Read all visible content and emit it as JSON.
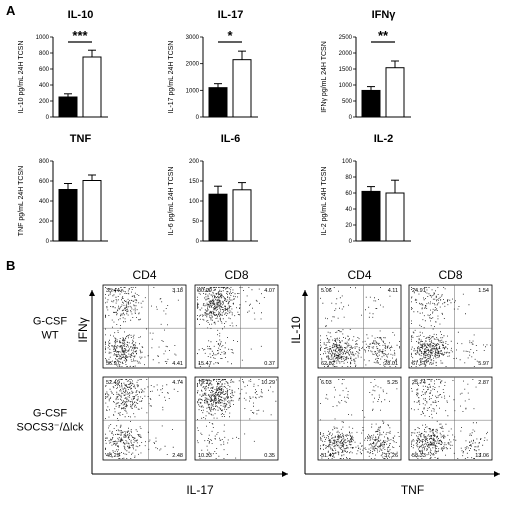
{
  "panels": {
    "a_label": "A",
    "b_label": "B"
  },
  "chart_data": [
    {
      "type": "bar",
      "title": "IL-10",
      "ylabel": "IL-10 pg/mL 24H TCSN",
      "ylim": [
        0,
        1000
      ],
      "yticks": [
        "0",
        "200",
        "400",
        "600",
        "800",
        "1000"
      ],
      "significance": "***",
      "values": [
        250,
        750
      ],
      "errors": [
        40,
        85
      ],
      "fills": [
        "#000000",
        "#ffffff"
      ]
    },
    {
      "type": "bar",
      "title": "IL-17",
      "ylabel": "IL-17 pg/mL 24H TCSN",
      "ylim": [
        0,
        3000
      ],
      "yticks": [
        "0",
        "1000",
        "2000",
        "3000"
      ],
      "significance": "*",
      "values": [
        1100,
        2150
      ],
      "errors": [
        150,
        320
      ],
      "fills": [
        "#000000",
        "#ffffff"
      ]
    },
    {
      "type": "bar",
      "title": "IFNγ",
      "ylabel": "IFNγ pg/mL 24H TCSN",
      "ylim": [
        0,
        2500
      ],
      "yticks": [
        "0",
        "500",
        "1000",
        "1500",
        "2000",
        "2500"
      ],
      "significance": "**",
      "values": [
        830,
        1540
      ],
      "errors": [
        120,
        210
      ],
      "fills": [
        "#000000",
        "#ffffff"
      ]
    },
    {
      "type": "bar",
      "title": "TNF",
      "ylabel": "TNF pg/mL 24H TCSN",
      "ylim": [
        0,
        800
      ],
      "yticks": [
        "0",
        "200",
        "400",
        "600",
        "800"
      ],
      "significance": "",
      "values": [
        515,
        605
      ],
      "errors": [
        60,
        55
      ],
      "fills": [
        "#000000",
        "#ffffff"
      ]
    },
    {
      "type": "bar",
      "title": "IL-6",
      "ylabel": "IL-6 pg/mL 24H TCSN",
      "ylim": [
        0,
        200
      ],
      "yticks": [
        "0",
        "50",
        "100",
        "150",
        "200"
      ],
      "significance": "",
      "values": [
        117,
        128
      ],
      "errors": [
        20,
        18
      ],
      "fills": [
        "#000000",
        "#ffffff"
      ]
    },
    {
      "type": "bar",
      "title": "IL-2",
      "ylabel": "IL-2 pg/mL 24H TCSN",
      "ylim": [
        0,
        100
      ],
      "yticks": [
        "0",
        "20",
        "40",
        "60",
        "80",
        "100"
      ],
      "significance": "",
      "values": [
        62,
        60
      ],
      "errors": [
        6,
        16
      ],
      "fills": [
        "#000000",
        "#ffffff"
      ]
    }
  ],
  "flow": {
    "col_headers": [
      "CD4",
      "CD8",
      "CD4",
      "CD8"
    ],
    "row_headers": [
      [
        "G-CSF",
        "WT"
      ],
      [
        "G-CSF",
        "SOCS3⁻/Δlck"
      ]
    ],
    "left_y_axis": "IFNγ",
    "left_x_axis": "IL-17",
    "right_y_axis": "IL-10",
    "right_x_axis": "TNF",
    "plots": [
      {
        "row": 0,
        "col": 0,
        "quadrants": [
          "35.44",
          "3.18",
          "56.97",
          "4.41"
        ]
      },
      {
        "row": 0,
        "col": 1,
        "quadrants": [
          "80.09",
          "4.07",
          "15.47",
          "0.37"
        ]
      },
      {
        "row": 0,
        "col": 2,
        "quadrants": [
          "5.06",
          "4.11",
          "62.82",
          "28.01"
        ]
      },
      {
        "row": 0,
        "col": 3,
        "quadrants": [
          "24.91",
          "1.54",
          "67.57",
          "5.97"
        ]
      },
      {
        "row": 1,
        "col": 0,
        "quadrants": [
          "52.49",
          "4.74",
          "40.29",
          "2.48"
        ]
      },
      {
        "row": 1,
        "col": 1,
        "quadrants": [
          "79.12",
          "10.29",
          "10.33",
          "0.35"
        ]
      },
      {
        "row": 1,
        "col": 2,
        "quadrants": [
          "6.03",
          "5.25",
          "51.47",
          "37.26"
        ]
      },
      {
        "row": 1,
        "col": 3,
        "quadrants": [
          "25.74",
          "2.87",
          "58.33",
          "13.06"
        ]
      }
    ]
  }
}
